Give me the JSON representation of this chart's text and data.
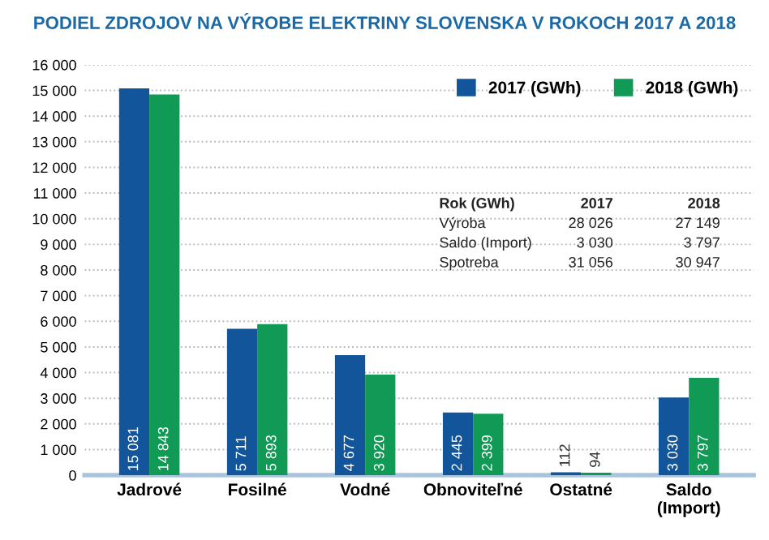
{
  "chart_data": {
    "type": "bar",
    "title": "PODIEL ZDROJOV NA VÝROBE ELEKTRINY SLOVENSKA V ROKOCH 2017 A 2018",
    "categories": [
      "Jadrové",
      "Fosilné",
      "Vodné",
      "Obnoviteľné",
      "Ostatné",
      "Saldo\n(Import)"
    ],
    "series": [
      {
        "name": "2017 (GWh)",
        "color": "#12559a",
        "values": [
          15081,
          5711,
          4677,
          2445,
          112,
          3030
        ],
        "value_labels": [
          "15 081",
          "5 711",
          "4 677",
          "2 445",
          "112",
          "3 030"
        ]
      },
      {
        "name": "2018 (GWh)",
        "color": "#119a55",
        "values": [
          14843,
          5893,
          3920,
          2399,
          94,
          3797
        ],
        "value_labels": [
          "14 843",
          "5 893",
          "3 920",
          "2 399",
          "94",
          "3 797"
        ]
      }
    ],
    "ylim": [
      0,
      16000
    ],
    "yticks": [
      {
        "value": 0,
        "label": "0"
      },
      {
        "value": 1000,
        "label": "1 000"
      },
      {
        "value": 2000,
        "label": "2 000"
      },
      {
        "value": 3000,
        "label": "3 000"
      },
      {
        "value": 4000,
        "label": "4 000"
      },
      {
        "value": 5000,
        "label": "5 000"
      },
      {
        "value": 6000,
        "label": "6 000"
      },
      {
        "value": 7000,
        "label": "7 000"
      },
      {
        "value": 8000,
        "label": "8 000"
      },
      {
        "value": 9000,
        "label": "9 000"
      },
      {
        "value": 10000,
        "label": "10 000"
      },
      {
        "value": 11000,
        "label": "11 000"
      },
      {
        "value": 12000,
        "label": "12 000"
      },
      {
        "value": 13000,
        "label": "13 000"
      },
      {
        "value": 14000,
        "label": "14 000"
      },
      {
        "value": 15000,
        "label": "15 000"
      },
      {
        "value": 16000,
        "label": "16 000"
      }
    ],
    "grid": "y",
    "legend": "top right",
    "annotations": [
      "Rok (GWh)",
      "2017",
      "2018",
      "Výroba",
      "28 026",
      "27 149",
      "Saldo (Import)",
      "3 030",
      "3 797",
      "Spotreba",
      "31 056",
      "30 947"
    ]
  }
}
